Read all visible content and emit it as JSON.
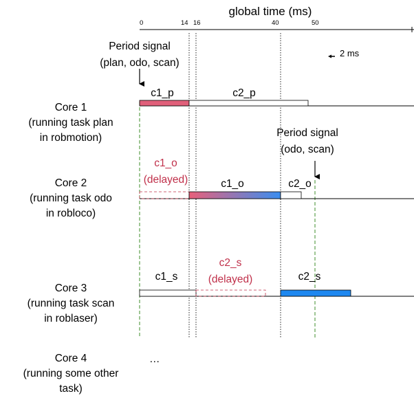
{
  "axis": {
    "title": "global time (ms)",
    "ticks": [
      "0",
      "14",
      "16",
      "40",
      "50"
    ]
  },
  "scale_note": "2 ms",
  "signals": {
    "first": {
      "line1": "Period signal",
      "line2": "(plan, odo, scan)"
    },
    "second": {
      "line1": "Period signal",
      "line2": "(odo, scan)"
    }
  },
  "cores": [
    {
      "line1": "Core 1",
      "line2": "(running task plan",
      "line3": "in robmotion)"
    },
    {
      "line1": "Core 2",
      "line2": "(running task odo",
      "line3": "in robloco)"
    },
    {
      "line1": "Core 3",
      "line2": "(running task scan",
      "line3": "in roblaser)"
    },
    {
      "line1": "Core 4",
      "line2": "(running some other",
      "line3": "task)"
    }
  ],
  "tasks": {
    "c1_p": "c1_p",
    "c2_p": "c2_p",
    "c1_o": "c1_o",
    "c1_o_delayed_name": "c1_o",
    "c1_o_delayed_note": "(delayed)",
    "c2_o": "c2_o",
    "c1_s": "c1_s",
    "c2_s_delayed_name": "c2_s",
    "c2_s_delayed_note": "(delayed)",
    "c2_s": "c2_s"
  },
  "ellipsis": "…",
  "colors": {
    "pink": "#E0607A",
    "blue": "#1E88F0",
    "delayed_text": "#C0304A",
    "signal_line": "#3C8C28"
  }
}
